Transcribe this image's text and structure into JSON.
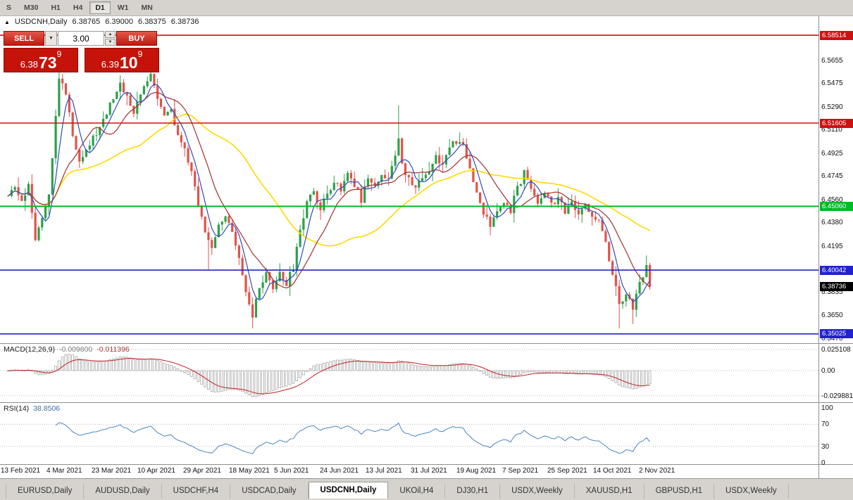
{
  "toolbar": {
    "timeframes": [
      {
        "label": "S"
      },
      {
        "label": "M30"
      },
      {
        "label": "H1"
      },
      {
        "label": "H4"
      },
      {
        "label": "D1",
        "active": true
      },
      {
        "label": "W1"
      },
      {
        "label": "MN"
      }
    ]
  },
  "chart": {
    "header": {
      "marker": "▲",
      "symbol": "USDCNH,Daily",
      "open": "6.38765",
      "high": "6.39000",
      "low": "6.38375",
      "close": "6.38736"
    },
    "trade_panel": {
      "sell_label": "SELL",
      "buy_label": "BUY",
      "volume": "3.00",
      "sell_price": {
        "prefix": "6.38",
        "big": "73",
        "sup": "9"
      },
      "buy_price": {
        "prefix": "6.39",
        "big": "10",
        "sup": "9"
      }
    },
    "price_axis": {
      "labels": [
        "6.5655",
        "6.5475",
        "6.5290",
        "6.5110",
        "6.4925",
        "6.4745",
        "6.4560",
        "6.4380",
        "6.4195",
        "6.4015",
        "6.3835",
        "6.3650",
        "6.3470"
      ],
      "badges": [
        {
          "name": "resistance-level-badge",
          "value": "6.58514",
          "price": 6.58514,
          "color": "#cc1111",
          "line": true,
          "width": 1.6
        },
        {
          "name": "resistance-level-badge",
          "value": "6.51605",
          "price": 6.51605,
          "color": "#cc1111",
          "line": true,
          "width": 1.6
        },
        {
          "name": "support-level-badge",
          "value": "6.45060",
          "price": 6.4506,
          "color": "#00bb22",
          "line": true,
          "width": 2
        },
        {
          "name": "support-level-badge",
          "value": "6.40042",
          "price": 6.40042,
          "color": "#2222cc",
          "line": true,
          "width": 1.6
        },
        {
          "name": "support-level-badge",
          "value": "6.35025",
          "price": 6.35025,
          "color": "#2222cc",
          "line": true,
          "width": 1.6
        },
        {
          "name": "current-price-badge",
          "value": "6.38736",
          "price": 6.38736,
          "color": "#000000",
          "line": false
        }
      ]
    },
    "date_axis": {
      "labels": [
        "13 Feb 2021",
        "4 Mar 2021",
        "23 Mar 2021",
        "10 Apr 2021",
        "29 Apr 2021",
        "18 May 2021",
        "5 Jun 2021",
        "24 Jun 2021",
        "13 Jul 2021",
        "31 Jul 2021",
        "19 Aug 2021",
        "7 Sep 2021",
        "25 Sep 2021",
        "14 Oct 2021",
        "2 Nov 2021"
      ]
    }
  },
  "macd_panel": {
    "label": "MACD(12,26,9)",
    "value_main": "-0.009800",
    "value_signal": "-0.011396",
    "scale": [
      "0.025108",
      "0.00",
      "-0.029881"
    ]
  },
  "rsi_panel": {
    "label": "RSI(14)",
    "value": "38.8506",
    "scale": [
      "100",
      "70",
      "30",
      "0"
    ],
    "levels": [
      70,
      30
    ]
  },
  "tabs": [
    {
      "label": "EURUSD,Daily"
    },
    {
      "label": "AUDUSD,Daily"
    },
    {
      "label": "USDCHF,H4"
    },
    {
      "label": "USDCAD,Daily"
    },
    {
      "label": "USDCNH,Daily",
      "active": true
    },
    {
      "label": "UKOil,H4"
    },
    {
      "label": "DJ30,H1"
    },
    {
      "label": "USDX,Weekly"
    },
    {
      "label": "XAUUSD,H1"
    },
    {
      "label": "GBPUSD,H1"
    },
    {
      "label": "USDX,Weekly"
    }
  ],
  "chart_data": {
    "type": "candlestick",
    "title": "USDCNH,Daily",
    "ohlc_header": {
      "open": 6.38765,
      "high": 6.39,
      "low": 6.38375,
      "close": 6.38736
    },
    "last_close": 6.38736,
    "candles_count": 190,
    "ylim": [
      6.3446,
      6.5962
    ],
    "y_axis_ticks": [
      6.5655,
      6.5475,
      6.529,
      6.511,
      6.4925,
      6.4745,
      6.456,
      6.438,
      6.4195,
      6.4015,
      6.3835,
      6.365,
      6.347
    ],
    "x_axis_dates": [
      "13 Feb 2021",
      "4 Mar 2021",
      "23 Mar 2021",
      "10 Apr 2021",
      "29 Apr 2021",
      "18 May 2021",
      "5 Jun 2021",
      "24 Jun 2021",
      "13 Jul 2021",
      "31 Jul 2021",
      "19 Aug 2021",
      "7 Sep 2021",
      "25 Sep 2021",
      "14 Oct 2021",
      "2 Nov 2021"
    ],
    "horizontal_levels": [
      6.58514,
      6.51605,
      6.4506,
      6.40042,
      6.35025
    ],
    "current_price": 6.38736,
    "colors": {
      "up": "#2ca04b",
      "down": "#e2524a"
    },
    "price_keyframes": [
      [
        0,
        6.456
      ],
      [
        2,
        6.466
      ],
      [
        4,
        6.452
      ],
      [
        6,
        6.47
      ],
      [
        8,
        6.425
      ],
      [
        10,
        6.444
      ],
      [
        12,
        6.462
      ],
      [
        14,
        6.52
      ],
      [
        15,
        6.552
      ],
      [
        17,
        6.54
      ],
      [
        19,
        6.505
      ],
      [
        21,
        6.488
      ],
      [
        24,
        6.5
      ],
      [
        27,
        6.512
      ],
      [
        30,
        6.532
      ],
      [
        33,
        6.546
      ],
      [
        35,
        6.538
      ],
      [
        37,
        6.524
      ],
      [
        40,
        6.545
      ],
      [
        42,
        6.556
      ],
      [
        44,
        6.538
      ],
      [
        46,
        6.522
      ],
      [
        48,
        6.528
      ],
      [
        50,
        6.504
      ],
      [
        52,
        6.494
      ],
      [
        54,
        6.478
      ],
      [
        56,
        6.452
      ],
      [
        58,
        6.43
      ],
      [
        60,
        6.418
      ],
      [
        62,
        6.438
      ],
      [
        64,
        6.444
      ],
      [
        66,
        6.428
      ],
      [
        68,
        6.408
      ],
      [
        70,
        6.382
      ],
      [
        72,
        6.364
      ],
      [
        74,
        6.386
      ],
      [
        76,
        6.396
      ],
      [
        78,
        6.384
      ],
      [
        80,
        6.398
      ],
      [
        82,
        6.39
      ],
      [
        84,
        6.402
      ],
      [
        86,
        6.43
      ],
      [
        88,
        6.456
      ],
      [
        90,
        6.464
      ],
      [
        92,
        6.448
      ],
      [
        94,
        6.46
      ],
      [
        96,
        6.472
      ],
      [
        98,
        6.462
      ],
      [
        100,
        6.478
      ],
      [
        102,
        6.468
      ],
      [
        104,
        6.456
      ],
      [
        106,
        6.472
      ],
      [
        108,
        6.464
      ],
      [
        110,
        6.478
      ],
      [
        112,
        6.47
      ],
      [
        114,
        6.492
      ],
      [
        115,
        6.505
      ],
      [
        116,
        6.482
      ],
      [
        118,
        6.472
      ],
      [
        120,
        6.466
      ],
      [
        122,
        6.474
      ],
      [
        124,
        6.48
      ],
      [
        126,
        6.49
      ],
      [
        128,
        6.484
      ],
      [
        130,
        6.496
      ],
      [
        132,
        6.502
      ],
      [
        134,
        6.497
      ],
      [
        136,
        6.48
      ],
      [
        138,
        6.462
      ],
      [
        140,
        6.446
      ],
      [
        142,
        6.434
      ],
      [
        144,
        6.446
      ],
      [
        146,
        6.456
      ],
      [
        148,
        6.448
      ],
      [
        150,
        6.464
      ],
      [
        152,
        6.478
      ],
      [
        154,
        6.466
      ],
      [
        156,
        6.454
      ],
      [
        158,
        6.462
      ],
      [
        160,
        6.452
      ],
      [
        162,
        6.458
      ],
      [
        164,
        6.446
      ],
      [
        166,
        6.452
      ],
      [
        168,
        6.442
      ],
      [
        170,
        6.452
      ],
      [
        172,
        6.444
      ],
      [
        174,
        6.438
      ],
      [
        176,
        6.424
      ],
      [
        178,
        6.396
      ],
      [
        180,
        6.374
      ],
      [
        182,
        6.38
      ],
      [
        184,
        6.371
      ],
      [
        186,
        6.392
      ],
      [
        188,
        6.403
      ],
      [
        189,
        6.396
      ],
      [
        190,
        6.387
      ]
    ],
    "spikes": [
      {
        "i": 15,
        "high": 6.572
      },
      {
        "i": 42,
        "high": 6.575
      },
      {
        "i": 59,
        "low": 6.401
      },
      {
        "i": 72,
        "low": 6.3545
      },
      {
        "i": 115,
        "high": 6.53
      },
      {
        "i": 180,
        "low": 6.3545
      },
      {
        "i": 184,
        "low": 6.358
      },
      {
        "i": 188,
        "high": 6.412
      }
    ],
    "moving_averages": [
      {
        "period": 40,
        "color": "#ffd900",
        "width": 1.6,
        "name": "slow-ma"
      },
      {
        "period": 13,
        "color": "#a52e2e",
        "width": 1.2,
        "name": "medium-ma"
      },
      {
        "period": 5,
        "color": "#2f4bbf",
        "width": 1.2,
        "name": "fast-ma"
      }
    ],
    "indicators": [
      {
        "name": "MACD",
        "params": [
          12,
          26,
          9
        ],
        "display_values": [
          -0.0098,
          -0.011396
        ],
        "scale": [
          0.025108,
          0.0,
          -0.029881
        ]
      },
      {
        "name": "RSI",
        "params": [
          14
        ],
        "display_value": 38.8506,
        "levels": [
          70,
          30
        ],
        "range": [
          0,
          100
        ]
      }
    ]
  }
}
